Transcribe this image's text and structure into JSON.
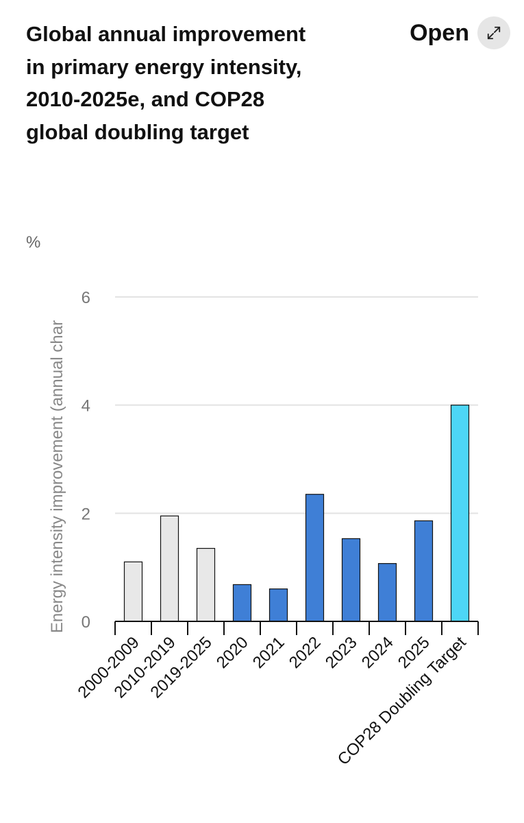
{
  "header": {
    "title": "Global annual improvement in primary energy intensity, 2010-2025e, and COP28 global doubling target",
    "open_label": "Open",
    "open_icon": "expand-arrows-icon"
  },
  "chart_data": {
    "type": "bar",
    "unit": "%",
    "ylabel": "Energy intensity improvement (annual char",
    "ylim": [
      0,
      6
    ],
    "yticks": [
      0,
      2,
      4,
      6
    ],
    "grid": true,
    "categories": [
      "2000-2009",
      "2010-2019",
      "2019-2025",
      "2020",
      "2021",
      "2022",
      "2023",
      "2024",
      "2025",
      "COP28 Doubling Target"
    ],
    "values": [
      1.1,
      1.95,
      1.35,
      0.68,
      0.6,
      2.35,
      1.53,
      1.07,
      1.86,
      4.0
    ],
    "colors": [
      "#e8e8e8",
      "#e8e8e8",
      "#e8e8e8",
      "#3f7fd6",
      "#3f7fd6",
      "#3f7fd6",
      "#3f7fd6",
      "#3f7fd6",
      "#3f7fd6",
      "#4dd6f6"
    ]
  }
}
